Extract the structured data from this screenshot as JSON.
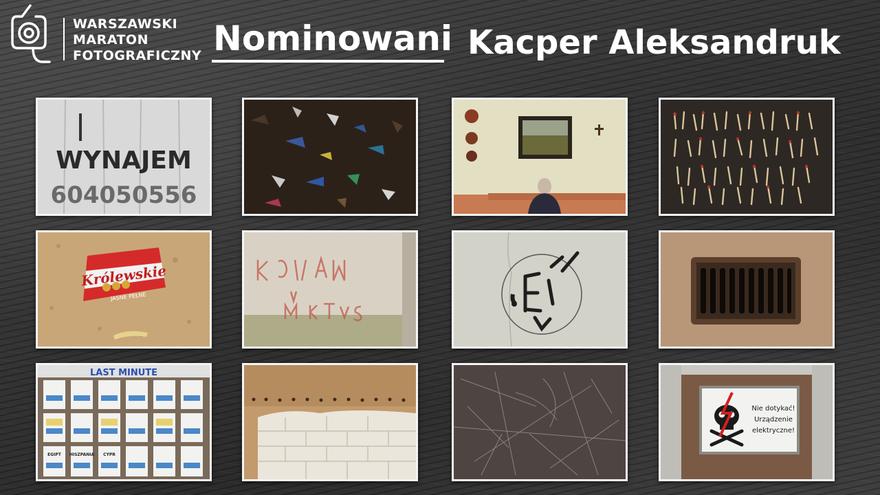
{
  "header": {
    "logo": {
      "line1": "WARSZAWSKI",
      "line2": "MARATON",
      "line3": "FOTOGRAFICZNY"
    },
    "section_title": "Nominowani",
    "author_name": "Kacper Aleksandruk"
  },
  "photos": {
    "p1": {
      "line1": "WYNAJEM",
      "line2": "604050556"
    },
    "p5": {
      "brand": "Królewskie",
      "sub": "JASNE PEŁNE"
    },
    "p9": {
      "banner": "LAST MINUTE",
      "tags": [
        "EGIPT",
        "HISZPANIA",
        "CYPR"
      ]
    },
    "p12": {
      "line1": "Nie dotykać!",
      "line2": "Urządzenie",
      "line3": "elektryczne!"
    }
  }
}
